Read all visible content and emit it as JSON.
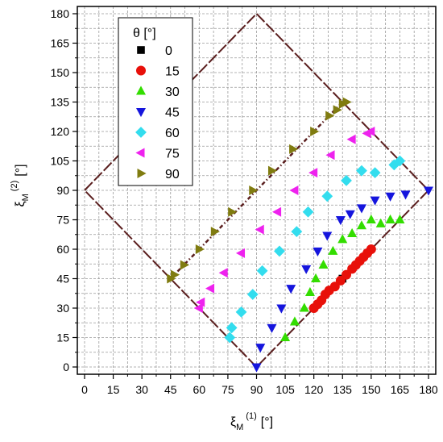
{
  "chart_data": {
    "type": "scatter",
    "x_axis": {
      "label_base": "ξ",
      "label_sub": "M",
      "label_sup": "(1)",
      "label_unit": "[°]",
      "range": [
        0,
        180
      ],
      "ticks": [
        "0",
        "15",
        "30",
        "45",
        "60",
        "75",
        "90",
        "105",
        "120",
        "135",
        "150",
        "165",
        "180"
      ]
    },
    "y_axis": {
      "label_base": "ξ",
      "label_sub": "M",
      "label_sup": "(2)",
      "label_unit": "[°]",
      "range": [
        0,
        180
      ],
      "ticks": [
        "0",
        "15",
        "30",
        "45",
        "60",
        "75",
        "90",
        "105",
        "120",
        "135",
        "150",
        "165",
        "180"
      ]
    },
    "grid": true,
    "legend": {
      "title": "θ [°]",
      "position": "top-left"
    },
    "boundary": {
      "color": "#5a1e1e",
      "points": [
        [
          0,
          90
        ],
        [
          90,
          180
        ],
        [
          180,
          90
        ],
        [
          90,
          0
        ],
        [
          0,
          90
        ]
      ]
    },
    "dotted_line": {
      "color": "#5a1e1e",
      "from": [
        45,
        45
      ],
      "to": [
        135,
        135
      ]
    },
    "series": [
      {
        "name": "0",
        "marker": "square",
        "color": "#000000",
        "points": [
          [
            135,
            45
          ]
        ]
      },
      {
        "name": "15",
        "marker": "circle",
        "color": "#e8100a",
        "points": [
          [
            120,
            30
          ],
          [
            122,
            32
          ],
          [
            124,
            34
          ],
          [
            126,
            37
          ],
          [
            128,
            39
          ],
          [
            131,
            41
          ],
          [
            134,
            44
          ],
          [
            137,
            47
          ],
          [
            140,
            50
          ],
          [
            142,
            52
          ],
          [
            144,
            54
          ],
          [
            146,
            56
          ],
          [
            148,
            58
          ],
          [
            150,
            60
          ]
        ]
      },
      {
        "name": "30",
        "marker": "triangle-up",
        "color": "#33dd00",
        "points": [
          [
            105,
            15
          ],
          [
            110,
            23
          ],
          [
            115,
            30
          ],
          [
            118,
            38
          ],
          [
            121,
            45
          ],
          [
            125,
            52
          ],
          [
            130,
            59
          ],
          [
            135,
            65
          ],
          [
            140,
            68
          ],
          [
            145,
            72
          ],
          [
            150,
            75
          ],
          [
            155,
            73
          ],
          [
            160,
            75
          ],
          [
            165,
            75
          ]
        ]
      },
      {
        "name": "45",
        "marker": "triangle-down",
        "color": "#1515dd",
        "points": [
          [
            90,
            0
          ],
          [
            92,
            10
          ],
          [
            98,
            20
          ],
          [
            103,
            30
          ],
          [
            108,
            40
          ],
          [
            116,
            50
          ],
          [
            122,
            59
          ],
          [
            127,
            67
          ],
          [
            134,
            75
          ],
          [
            139,
            78
          ],
          [
            145,
            81
          ],
          [
            152,
            85
          ],
          [
            160,
            87
          ],
          [
            168,
            88
          ],
          [
            180,
            90
          ]
        ]
      },
      {
        "name": "60",
        "marker": "diamond",
        "color": "#33ddee",
        "points": [
          [
            76,
            15
          ],
          [
            77,
            20
          ],
          [
            82,
            28
          ],
          [
            88,
            37
          ],
          [
            93,
            49
          ],
          [
            102,
            59
          ],
          [
            111,
            69
          ],
          [
            117,
            79
          ],
          [
            127,
            87
          ],
          [
            137,
            95
          ],
          [
            145,
            100
          ],
          [
            152,
            99
          ],
          [
            162,
            103
          ],
          [
            165,
            105
          ]
        ]
      },
      {
        "name": "75",
        "marker": "triangle-left",
        "color": "#ee22ee",
        "points": [
          [
            60,
            30
          ],
          [
            61,
            33
          ],
          [
            66,
            40
          ],
          [
            73,
            48
          ],
          [
            82,
            58
          ],
          [
            92,
            70
          ],
          [
            101,
            79
          ],
          [
            110,
            90
          ],
          [
            120,
            99
          ],
          [
            129,
            108
          ],
          [
            140,
            116
          ],
          [
            148,
            119
          ],
          [
            150,
            120
          ]
        ]
      },
      {
        "name": "90",
        "marker": "triangle-right",
        "color": "#807c10",
        "points": [
          [
            45,
            45
          ],
          [
            47,
            47
          ],
          [
            52,
            52
          ],
          [
            60,
            60
          ],
          [
            68,
            69
          ],
          [
            77,
            79
          ],
          [
            88,
            90
          ],
          [
            98,
            100
          ],
          [
            109,
            111
          ],
          [
            120,
            120
          ],
          [
            128,
            128
          ],
          [
            132,
            131
          ],
          [
            135,
            134
          ],
          [
            137,
            135
          ]
        ]
      }
    ]
  }
}
